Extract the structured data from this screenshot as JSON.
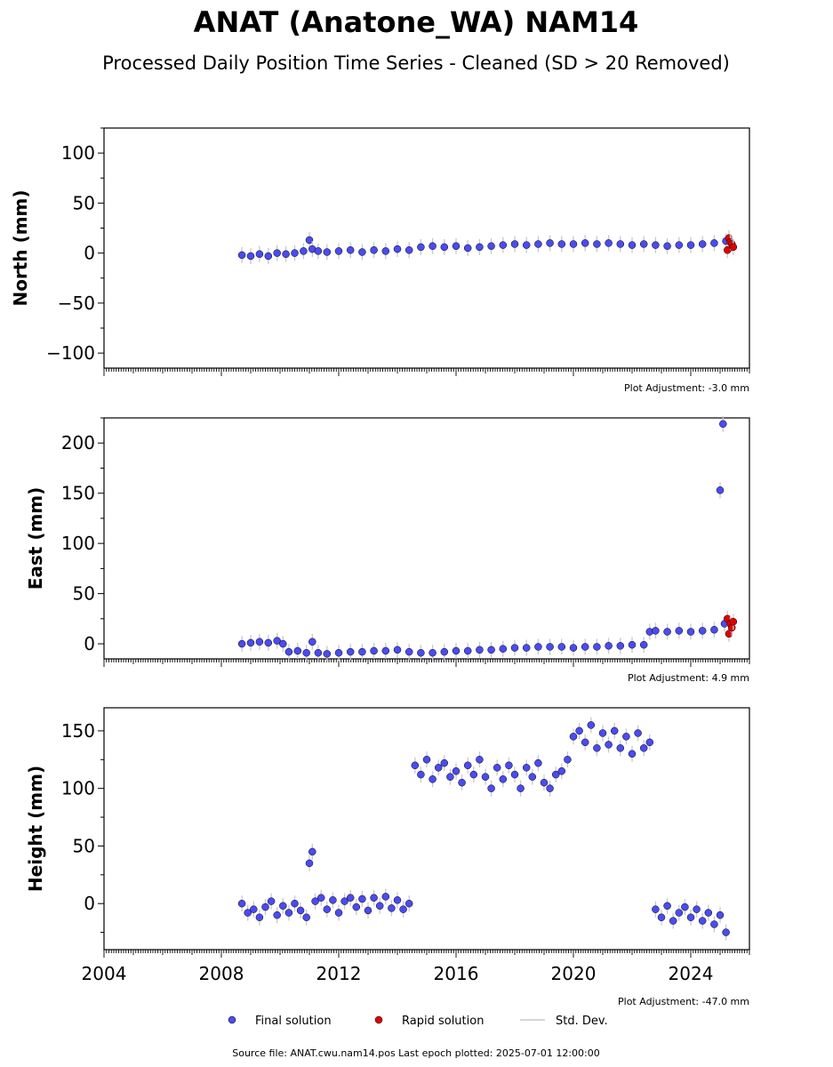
{
  "title": "ANAT (Anatone_WA) NAM14",
  "subtitle": "Processed Daily Position Time Series - Cleaned (SD > 20 Removed)",
  "source_text": "Source file: ANAT.cwu.nam14.pos  Last epoch plotted: 2025-07-01 12:00:00",
  "legend": {
    "final": "Final solution",
    "rapid": "Rapid solution",
    "std": "Std. Dev."
  },
  "colors": {
    "final": "#4b4bf2",
    "rapid": "#e00000",
    "std": "#c8c8c8",
    "marker_edge": "#000000"
  },
  "chart_data": [
    {
      "type": "scatter",
      "panel": "north",
      "ylabel": "North (mm)",
      "adjustment": "Plot Adjustment: -3.0 mm",
      "xlim": [
        2004,
        2026
      ],
      "ylim": [
        -115,
        125
      ],
      "yticks": [
        -100,
        -50,
        0,
        50,
        100
      ],
      "ytick_labels": [
        "−100",
        "−50",
        "0",
        "50",
        "100"
      ],
      "xtick_labels_shown": false,
      "final_series": {
        "x": [
          2008.7,
          2009.0,
          2009.3,
          2009.6,
          2009.9,
          2010.2,
          2010.5,
          2010.8,
          2011.0,
          2011.1,
          2011.3,
          2011.6,
          2012.0,
          2012.4,
          2012.8,
          2013.2,
          2013.6,
          2014.0,
          2014.4,
          2014.8,
          2015.2,
          2015.6,
          2016.0,
          2016.4,
          2016.8,
          2017.2,
          2017.6,
          2018.0,
          2018.4,
          2018.8,
          2019.2,
          2019.6,
          2020.0,
          2020.4,
          2020.8,
          2021.2,
          2021.6,
          2022.0,
          2022.4,
          2022.8,
          2023.2,
          2023.6,
          2024.0,
          2024.4,
          2024.8,
          2025.2
        ],
        "y": [
          -2,
          -3,
          -1,
          -3,
          0,
          -1,
          0,
          2,
          13,
          4,
          2,
          1,
          2,
          3,
          1,
          3,
          2,
          4,
          3,
          6,
          7,
          6,
          7,
          5,
          6,
          7,
          8,
          9,
          8,
          9,
          10,
          9,
          9,
          10,
          9,
          10,
          9,
          8,
          9,
          8,
          7,
          8,
          8,
          9,
          10,
          12
        ]
      },
      "rapid_series": {
        "x": [
          2025.25,
          2025.3,
          2025.35,
          2025.4,
          2025.45
        ],
        "y": [
          3,
          15,
          11,
          9,
          6
        ]
      }
    },
    {
      "type": "scatter",
      "panel": "east",
      "ylabel": "East (mm)",
      "adjustment": "Plot Adjustment: 4.9 mm",
      "xlim": [
        2004,
        2026
      ],
      "ylim": [
        -15,
        225
      ],
      "yticks": [
        0,
        50,
        100,
        150,
        200
      ],
      "ytick_labels": [
        "0",
        "50",
        "100",
        "150",
        "200"
      ],
      "xtick_labels_shown": false,
      "final_series": {
        "x": [
          2008.7,
          2009.0,
          2009.3,
          2009.6,
          2009.9,
          2010.1,
          2010.3,
          2010.6,
          2010.9,
          2011.1,
          2011.3,
          2011.6,
          2012.0,
          2012.4,
          2012.8,
          2013.2,
          2013.6,
          2014.0,
          2014.4,
          2014.8,
          2015.2,
          2015.6,
          2016.0,
          2016.4,
          2016.8,
          2017.2,
          2017.6,
          2018.0,
          2018.4,
          2018.8,
          2019.2,
          2019.6,
          2020.0,
          2020.4,
          2020.8,
          2021.2,
          2021.6,
          2022.0,
          2022.4,
          2022.6,
          2022.8,
          2023.2,
          2023.6,
          2024.0,
          2024.4,
          2024.8,
          2025.0,
          2025.1,
          2025.15
        ],
        "y": [
          0,
          1,
          2,
          1,
          3,
          0,
          -8,
          -7,
          -9,
          2,
          -9,
          -10,
          -9,
          -8,
          -8,
          -7,
          -7,
          -6,
          -8,
          -9,
          -9,
          -8,
          -7,
          -7,
          -6,
          -6,
          -5,
          -4,
          -4,
          -3,
          -3,
          -3,
          -4,
          -3,
          -3,
          -2,
          -2,
          -1,
          -1,
          12,
          13,
          12,
          13,
          12,
          13,
          14,
          153,
          219,
          20
        ]
      },
      "rapid_series": {
        "x": [
          2025.25,
          2025.3,
          2025.35,
          2025.4,
          2025.45
        ],
        "y": [
          25,
          10,
          20,
          16,
          22
        ]
      }
    },
    {
      "type": "scatter",
      "panel": "height",
      "ylabel": "Height (mm)",
      "adjustment": "Plot Adjustment: -47.0 mm",
      "xlim": [
        2004,
        2026
      ],
      "ylim": [
        -40,
        170
      ],
      "yticks": [
        0,
        50,
        100,
        150
      ],
      "ytick_labels": [
        "0",
        "50",
        "100",
        "150"
      ],
      "xticks": [
        2004,
        2008,
        2012,
        2016,
        2020,
        2024
      ],
      "xtick_labels": [
        "2004",
        "2008",
        "2012",
        "2016",
        "2020",
        "2024"
      ],
      "xtick_labels_shown": true,
      "final_series": {
        "x": [
          2008.7,
          2008.9,
          2009.1,
          2009.3,
          2009.5,
          2009.7,
          2009.9,
          2010.1,
          2010.3,
          2010.5,
          2010.7,
          2010.9,
          2011.0,
          2011.1,
          2011.2,
          2011.4,
          2011.6,
          2011.8,
          2012.0,
          2012.2,
          2012.4,
          2012.6,
          2012.8,
          2013.0,
          2013.2,
          2013.4,
          2013.6,
          2013.8,
          2014.0,
          2014.2,
          2014.4,
          2014.6,
          2014.8,
          2015.0,
          2015.2,
          2015.4,
          2015.6,
          2015.8,
          2016.0,
          2016.2,
          2016.4,
          2016.6,
          2016.8,
          2017.0,
          2017.2,
          2017.4,
          2017.6,
          2017.8,
          2018.0,
          2018.2,
          2018.4,
          2018.6,
          2018.8,
          2019.0,
          2019.2,
          2019.4,
          2019.6,
          2019.8,
          2020.0,
          2020.2,
          2020.4,
          2020.6,
          2020.8,
          2021.0,
          2021.2,
          2021.4,
          2021.6,
          2021.8,
          2022.0,
          2022.2,
          2022.4,
          2022.6,
          2022.8,
          2023.0,
          2023.2,
          2023.4,
          2023.6,
          2023.8,
          2024.0,
          2024.2,
          2024.4,
          2024.6,
          2024.8,
          2025.0,
          2025.2
        ],
        "y": [
          0,
          -8,
          -5,
          -12,
          -3,
          2,
          -10,
          -2,
          -8,
          0,
          -6,
          -12,
          35,
          45,
          2,
          5,
          -5,
          3,
          -8,
          2,
          5,
          -3,
          4,
          -6,
          5,
          -2,
          6,
          -4,
          3,
          -5,
          0,
          120,
          112,
          125,
          108,
          118,
          122,
          110,
          115,
          105,
          120,
          112,
          125,
          110,
          100,
          118,
          108,
          120,
          112,
          100,
          118,
          110,
          122,
          105,
          100,
          112,
          115,
          125,
          145,
          150,
          140,
          155,
          135,
          148,
          138,
          150,
          135,
          145,
          130,
          148,
          135,
          140,
          -5,
          -12,
          -2,
          -15,
          -8,
          -3,
          -12,
          -5,
          -15,
          -8,
          -18,
          -10,
          -25
        ]
      },
      "rapid_series": {
        "x": [],
        "y": []
      }
    }
  ]
}
